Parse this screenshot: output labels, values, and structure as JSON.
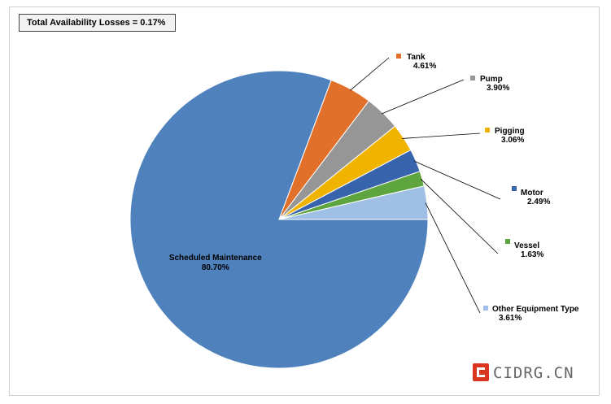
{
  "chart_data": {
    "type": "pie",
    "title": "Total Availability  Losses = 0.17%",
    "slices": [
      {
        "name": "Scheduled Maintenance",
        "value": 80.7,
        "label": "80.70%",
        "color": "#4f81bd"
      },
      {
        "name": "Tank",
        "value": 4.61,
        "label": "4.61%",
        "color": "#e1702b"
      },
      {
        "name": "Pump",
        "value": 3.9,
        "label": "3.90%",
        "color": "#969696"
      },
      {
        "name": "Pigging",
        "value": 3.06,
        "label": "3.06%",
        "color": "#f0b400"
      },
      {
        "name": "Motor",
        "value": 2.49,
        "label": "2.49%",
        "color": "#3863ad"
      },
      {
        "name": "Vessel",
        "value": 1.63,
        "label": "1.63%",
        "color": "#5fa53f"
      },
      {
        "name": "Other Equipment Type",
        "value": 3.61,
        "label": "3.61%",
        "color": "#9fbfe4"
      }
    ],
    "legend": "callouts"
  },
  "watermark": {
    "text": "CIDRG.CN",
    "color": "#d9351f"
  }
}
